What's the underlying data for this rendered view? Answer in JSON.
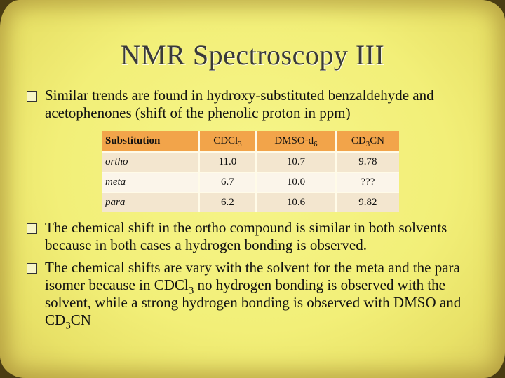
{
  "title": "NMR Spectroscopy III",
  "bullets": {
    "b1": "Similar trends are found in hydroxy-substituted benzaldehyde and acetophenones (shift of the phenolic proton in ppm)",
    "b2": "The chemical shift in the ortho compound is similar in both solvents because in both cases a hydrogen bonding is observed.",
    "b3_a": "The chemical shifts are vary with the solvent for the meta and the para isomer because in CDCl",
    "b3_sub1": "3",
    "b3_b": " no hydrogen bonding is observed with the solvent, while a strong hydrogen bonding is observed with DMSO and CD",
    "b3_sub2": "3",
    "b3_c": "CN"
  },
  "table": {
    "headers": {
      "substitution": "Substitution",
      "cdcl_main": "CDCl",
      "cdcl_sub": "3",
      "dmso_main": "DMSO-d",
      "dmso_sub": "6",
      "cd3cn_a": "CD",
      "cd3cn_sub": "3",
      "cd3cn_b": "CN"
    },
    "rows": [
      {
        "label": "ortho",
        "cdcl3": "11.0",
        "dmso": "10.7",
        "cd3cn": "9.78"
      },
      {
        "label": "meta",
        "cdcl3": "6.7",
        "dmso": "10.0",
        "cd3cn": "???"
      },
      {
        "label": "para",
        "cdcl3": "6.2",
        "dmso": "10.6",
        "cd3cn": "9.82"
      }
    ]
  }
}
